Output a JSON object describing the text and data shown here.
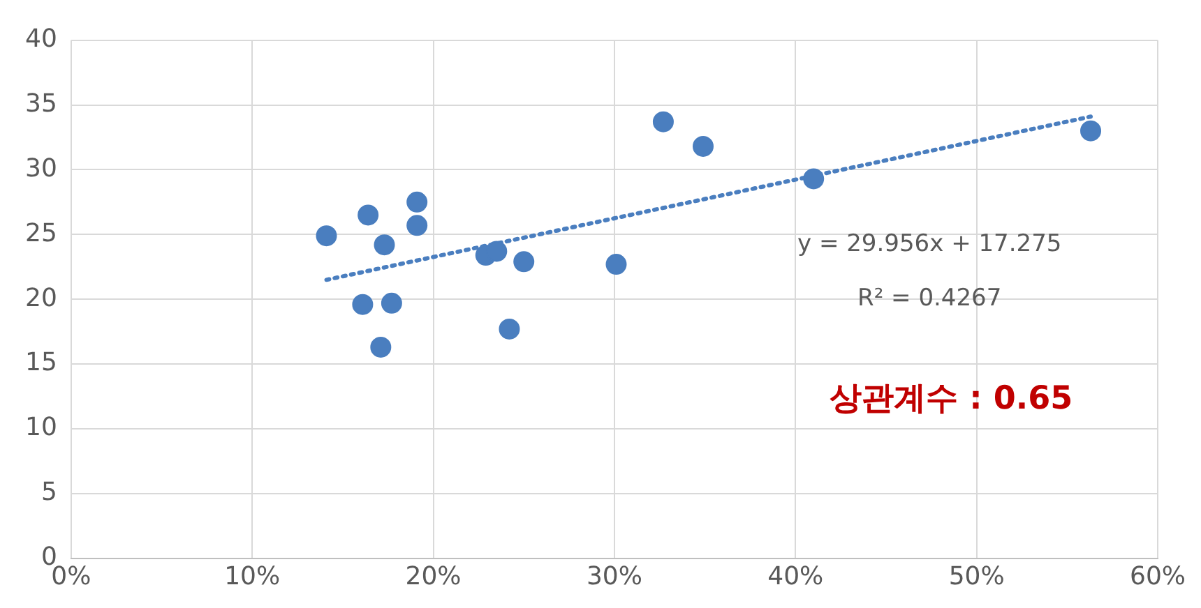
{
  "chart_data": {
    "type": "scatter",
    "xlim": [
      0,
      60
    ],
    "xticks": [
      {
        "value": 0,
        "label": "0%"
      },
      {
        "value": 10,
        "label": "10%"
      },
      {
        "value": 20,
        "label": "20%"
      },
      {
        "value": 30,
        "label": "30%"
      },
      {
        "value": 40,
        "label": "40%"
      },
      {
        "value": 50,
        "label": "50%"
      },
      {
        "value": 60,
        "label": "60%"
      }
    ],
    "ylim": [
      0,
      40
    ],
    "yticks": [
      0,
      5,
      10,
      15,
      20,
      25,
      30,
      35,
      40
    ],
    "grid": true,
    "legend": false,
    "marker": "circle",
    "series": [
      {
        "color": "#4a7ebf",
        "x": [
          14.1,
          16.4,
          19.1,
          19.1,
          17.3,
          16.1,
          17.7,
          17.1,
          22.9,
          23.5,
          25.0,
          24.2,
          30.1,
          32.7,
          34.9,
          41.0,
          56.3
        ],
        "values": [
          24.9,
          26.5,
          27.5,
          25.7,
          24.2,
          19.6,
          19.7,
          16.3,
          23.4,
          23.7,
          22.9,
          17.7,
          22.7,
          33.7,
          31.8,
          29.3,
          33.0
        ]
      },
      {
        "type": "line",
        "color": "#4a7ebf",
        "line_style": "dotted",
        "marker": "none",
        "x": [
          14.1,
          56.3
        ],
        "values": [
          21.5,
          34.1
        ]
      }
    ],
    "annotations": [
      "y = 29.956x + 17.275",
      "R² = 0.4267",
      "상관계수 : 0.65"
    ]
  }
}
